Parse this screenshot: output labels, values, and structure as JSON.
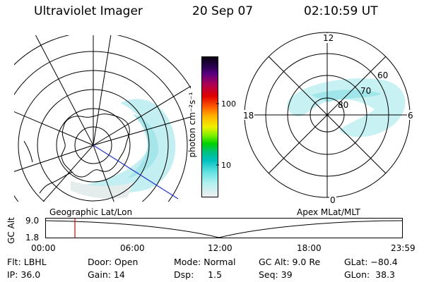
{
  "header": {
    "title": "Ultraviolet Imager",
    "date": "20 Sep 07",
    "time": "02:10:59 UT"
  },
  "colorbar": {
    "unit_label": "photon cm⁻²s⁻¹",
    "ticks": [
      "100",
      "10"
    ]
  },
  "left_map": {
    "caption": "Geographic Lat/Lon"
  },
  "right_map": {
    "caption": "Apex MLat/MLT",
    "mlt_labels": {
      "top": "12",
      "left": "18",
      "right": "6",
      "bottom": "0"
    },
    "lat_labels": [
      "80",
      "70",
      "60"
    ]
  },
  "timeline": {
    "axis_label": "GC Alt",
    "y_ticks": [
      "9.0",
      "1.8"
    ],
    "x_ticks": [
      "00:00",
      "06:00",
      "12:00",
      "18:00",
      "23:59"
    ],
    "marker_time": "02:10:59"
  },
  "info": {
    "row1": [
      {
        "key": "filter",
        "text": "Flt: LBHL"
      },
      {
        "key": "door",
        "text": "Door: Open"
      },
      {
        "key": "mode",
        "text": "Mode: Normal"
      },
      {
        "key": "gc_alt",
        "text": "GC Alt: 9.0 Re"
      },
      {
        "key": "glat",
        "text": "GLat: −80.4"
      }
    ],
    "row2": [
      {
        "key": "ip",
        "text": "IP: 36.0"
      },
      {
        "key": "gain",
        "text": "Gain: 14"
      },
      {
        "key": "dsp",
        "text": "Dsp:     1.5"
      },
      {
        "key": "seq",
        "text": "Seq: 39"
      },
      {
        "key": "glon",
        "text": "GLon:  38.3"
      }
    ]
  },
  "colors": {
    "aurora": "#aee9ec",
    "marker": "#e00000",
    "track": "#2233cc"
  }
}
